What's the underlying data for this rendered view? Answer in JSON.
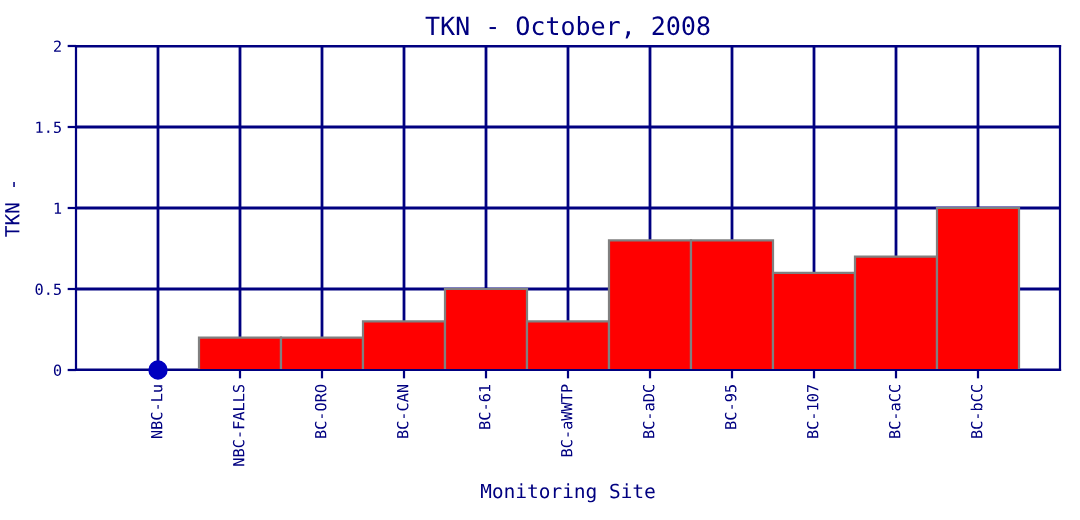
{
  "chart_data": {
    "type": "bar",
    "title": "TKN - October, 2008",
    "xlabel": "Monitoring Site",
    "ylabel": "TKN -",
    "categories": [
      "NBC-Lu",
      "NBC-FALLS",
      "BC-ORO",
      "BC-CAN",
      "BC-61",
      "BC-aWWTP",
      "BC-aDC",
      "BC-95",
      "BC-107",
      "BC-aCC",
      "BC-bCC"
    ],
    "series": [
      {
        "color": "#ff0000",
        "values": [
          null,
          0.2,
          0.2,
          0.3,
          0.5,
          0.3,
          0.8,
          0.8,
          0.6,
          0.7,
          1.0
        ]
      },
      {
        "type": "scatter",
        "color": "#0000c0",
        "marker": "circle",
        "values": [
          0,
          null,
          null,
          null,
          null,
          null,
          null,
          null,
          null,
          null,
          null
        ]
      }
    ],
    "ylim": [
      0,
      2
    ],
    "yticks": [
      0,
      0.5,
      1,
      1.5,
      2
    ],
    "grid": true
  }
}
